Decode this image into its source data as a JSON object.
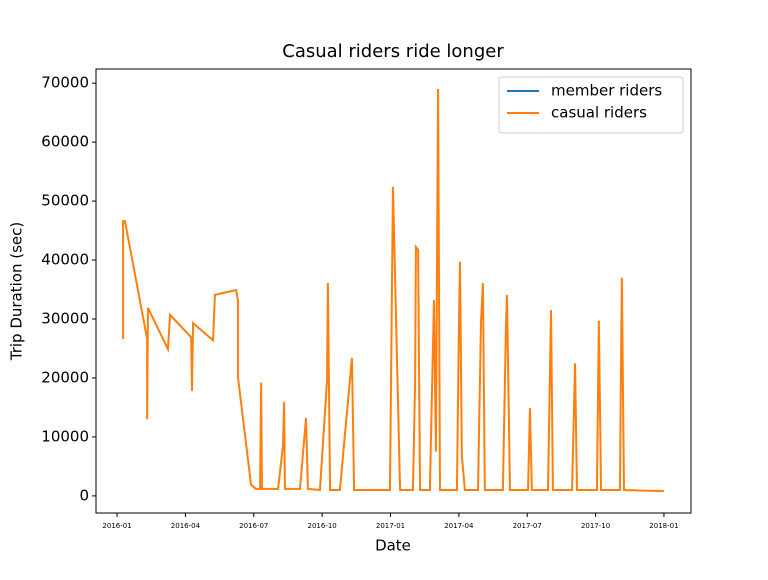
{
  "chart_data": {
    "type": "line",
    "title": "Casual riders ride longer",
    "x_label": "Date",
    "y_label": "Trip Duration (sec)",
    "x": [
      2016.022,
      2016.022,
      2016.029,
      2016.11,
      2016.11,
      2016.113,
      2016.186,
      2016.194,
      2016.271,
      2016.274,
      2016.278,
      2016.351,
      2016.358,
      2016.435,
      2016.442,
      2016.442,
      2016.49,
      2016.508,
      2016.523,
      2016.527,
      2016.53,
      2016.589,
      2016.607,
      2016.611,
      2016.614,
      2016.669,
      2016.691,
      2016.698,
      2016.742,
      2016.768,
      2016.771,
      2016.779,
      2016.815,
      2016.859,
      2016.867,
      2016.998,
      2017.009,
      2017.035,
      2017.082,
      2017.09,
      2017.093,
      2017.101,
      2017.108,
      2017.144,
      2017.159,
      2017.166,
      2017.174,
      2017.181,
      2017.243,
      2017.25,
      2017.254,
      2017.261,
      2017.272,
      2017.32,
      2017.331,
      2017.338,
      2017.345,
      2017.411,
      2017.422,
      2017.426,
      2017.437,
      2017.503,
      2017.51,
      2017.517,
      2017.576,
      2017.587,
      2017.594,
      2017.664,
      2017.675,
      2017.682,
      2017.755,
      2017.762,
      2017.77,
      2017.839,
      2017.846,
      2017.854,
      2018.0
    ],
    "series": [
      {
        "name": "member riders",
        "color": "#1f77b4",
        "values": [
          null,
          null,
          null,
          null,
          null,
          null,
          null,
          null,
          null,
          null,
          null,
          null,
          null,
          null,
          null,
          null,
          null,
          null,
          null,
          null,
          null,
          null,
          null,
          null,
          null,
          null,
          null,
          null,
          null,
          null,
          null,
          null,
          null,
          null,
          null,
          null,
          null,
          null,
          null,
          null,
          null,
          null,
          null,
          null,
          null,
          null,
          null,
          null,
          null,
          null,
          null,
          null,
          null,
          null,
          null,
          null,
          null,
          null,
          null,
          null,
          null,
          null,
          null,
          null,
          null,
          null,
          null,
          null,
          null,
          null,
          null,
          null,
          null,
          null,
          null,
          null,
          null
        ]
      },
      {
        "name": "casual riders",
        "color": "#ff7f0e",
        "values": [
          26600,
          46600,
          46600,
          26600,
          13000,
          31900,
          24900,
          30700,
          26900,
          17800,
          29300,
          26400,
          34100,
          34900,
          33200,
          20200,
          1900,
          1200,
          1200,
          19200,
          1200,
          1200,
          8600,
          15900,
          1200,
          1200,
          13200,
          1200,
          1000,
          19700,
          36100,
          1000,
          1000,
          23400,
          1000,
          1000,
          52400,
          1000,
          1000,
          19200,
          42200,
          41700,
          1000,
          1000,
          33200,
          7500,
          69000,
          1000,
          1000,
          28100,
          39700,
          6800,
          1000,
          1000,
          29500,
          36100,
          1000,
          1000,
          28100,
          34100,
          1000,
          1000,
          14900,
          1000,
          1000,
          31500,
          1000,
          1000,
          22500,
          1000,
          1000,
          29700,
          1000,
          1000,
          37000,
          1000,
          800
        ]
      }
    ],
    "xlim": [
      2015.923,
      2018.099
    ],
    "xticks": [
      {
        "value": 2016.0,
        "label": "2016-01"
      },
      {
        "value": 2016.25,
        "label": "2016-04"
      },
      {
        "value": 2016.5,
        "label": "2016-07"
      },
      {
        "value": 2016.75,
        "label": "2016-10"
      },
      {
        "value": 2017.0,
        "label": "2017-01"
      },
      {
        "value": 2017.25,
        "label": "2017-04"
      },
      {
        "value": 2017.5,
        "label": "2017-07"
      },
      {
        "value": 2017.75,
        "label": "2017-10"
      },
      {
        "value": 2018.0,
        "label": "2018-01"
      }
    ],
    "ylim": [
      -2900,
      72400
    ],
    "yticks": [
      0,
      10000,
      20000,
      30000,
      40000,
      50000,
      60000,
      70000
    ],
    "legend": "upper right"
  }
}
